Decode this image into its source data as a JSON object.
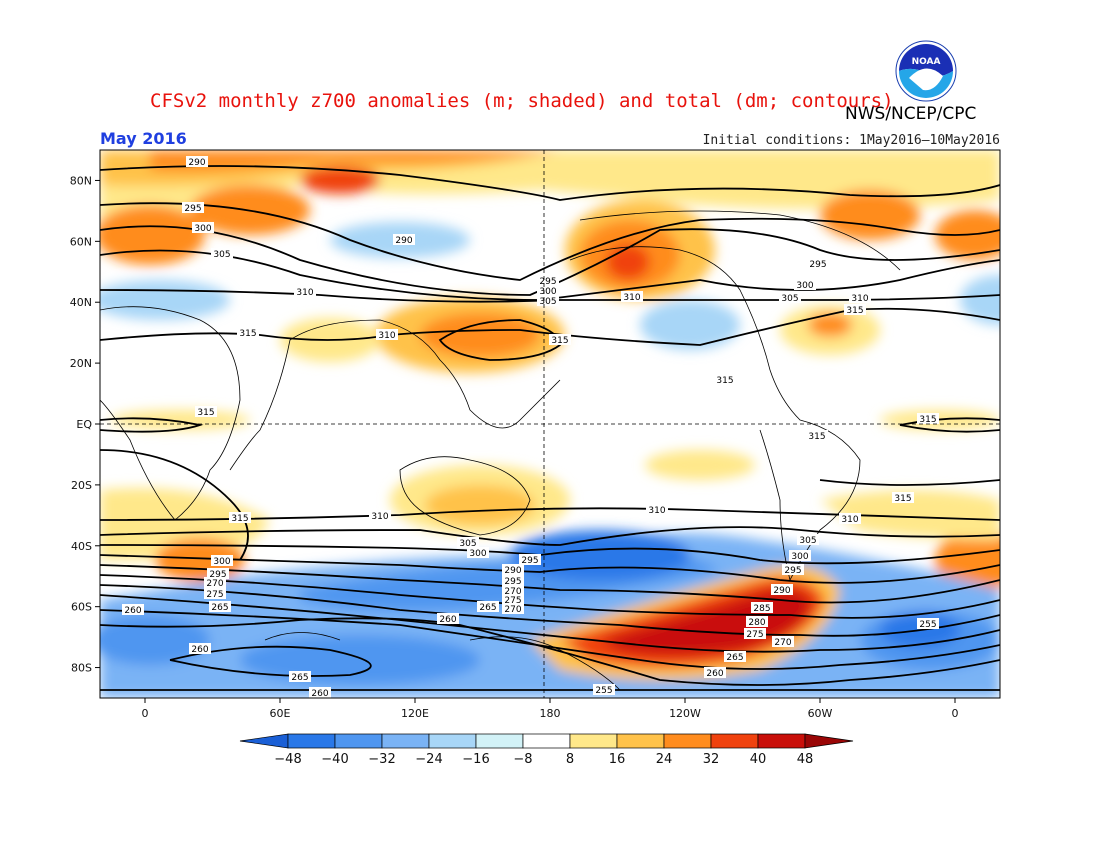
{
  "header": {
    "title": "CFSv2 monthly z700 anomalies (m; shaded) and total (dm; contours)",
    "org": "NWS/NCEP/CPC",
    "month": "May 2016",
    "initial_conditions": "Initial conditions: 1May2016—10May2016",
    "logo_text": "NOAA"
  },
  "axes": {
    "lat_labels": [
      "80N",
      "60N",
      "40N",
      "20N",
      "EQ",
      "20S",
      "40S",
      "60S",
      "80S"
    ],
    "lat_values": [
      80,
      60,
      40,
      20,
      0,
      -20,
      -40,
      -60,
      -80
    ],
    "lon_labels": [
      "0",
      "60E",
      "120E",
      "180",
      "120W",
      "60W",
      "0"
    ],
    "lon_values": [
      0,
      60,
      120,
      180,
      240,
      300,
      360
    ]
  },
  "colorbar": {
    "labels": [
      "-48",
      "-40",
      "-32",
      "-24",
      "-16",
      "-8",
      "8",
      "16",
      "24",
      "32",
      "40",
      "48"
    ],
    "colors": [
      "#1a5fd6",
      "#2a78e8",
      "#4f96f0",
      "#7ab3f5",
      "#a8d6f7",
      "#d2f2f7",
      "#ffffff",
      "#ffe88a",
      "#ffc24a",
      "#ff8c1e",
      "#f0420e",
      "#c90f0a",
      "#9a0606"
    ]
  },
  "anomaly_colors": {
    "neg_strong": "#1a5fd6",
    "neg_med": "#4f96f0",
    "neg_light": "#7ab3f5",
    "neg_weak": "#a8d6f7",
    "pos_weak": "#ffe88a",
    "pos_light": "#ffc24a",
    "pos_med": "#ff8c1e",
    "pos_strong": "#f0420e",
    "pos_max": "#c90f0a"
  },
  "contour_labels": [
    "290",
    "295",
    "300",
    "305",
    "310",
    "315",
    "255",
    "260",
    "265",
    "270",
    "275",
    "280",
    "285"
  ]
}
